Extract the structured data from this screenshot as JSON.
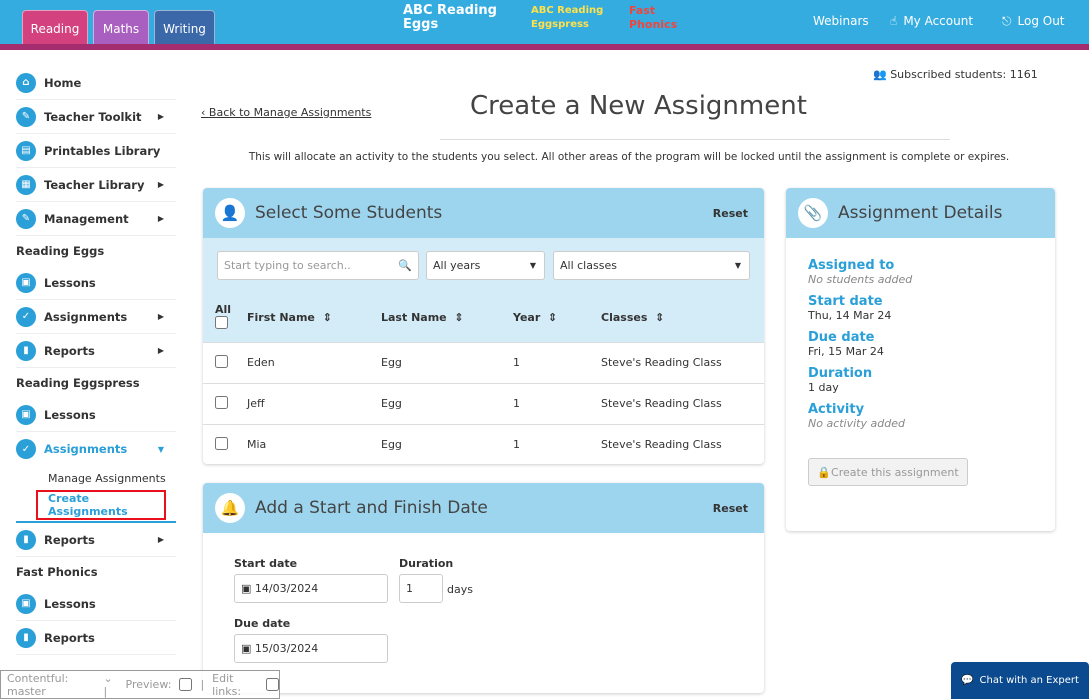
{
  "header": {
    "tabs": [
      "Reading",
      "Maths",
      "Writing"
    ],
    "logos": [
      "ABC Reading Eggs",
      "ABC Reading Eggspress",
      "Fast Phonics"
    ],
    "nav": [
      {
        "icon": "webinars",
        "label": "Webinars"
      },
      {
        "icon": "hand-icon",
        "label": "My Account"
      },
      {
        "icon": "logout-icon",
        "label": "Log Out"
      }
    ]
  },
  "colors": {
    "topbar": "#35ace0",
    "band": "#a32d6e",
    "reading": "#d4417f",
    "maths": "#a95fc0",
    "writing": "#3a68a8",
    "accent": "#2a9fd8"
  },
  "sidebar": {
    "items": [
      {
        "label": "Home"
      },
      {
        "label": "Teacher Toolkit"
      },
      {
        "label": "Printables Library"
      },
      {
        "label": "Teacher Library"
      },
      {
        "label": "Management"
      }
    ],
    "sections": [
      {
        "title": "Reading Eggs",
        "items": [
          "Lessons",
          "Assignments",
          "Reports"
        ]
      },
      {
        "title": "Reading Eggspress",
        "items": [
          "Lessons",
          "Assignments"
        ],
        "subitems": [
          "Manage Assignments",
          "Create Assignments"
        ],
        "after": "Reports"
      },
      {
        "title": "Fast Phonics",
        "items": [
          "Lessons",
          "Reports"
        ]
      }
    ]
  },
  "page": {
    "subscribed": "Subscribed students:  1161",
    "back": "Back to Manage Assignments",
    "title": "Create a New Assignment",
    "intro": "This will allocate an activity to the students you select. All other areas of the program will be locked until the assignment is complete or expires."
  },
  "students": {
    "title": "Select Some Students",
    "reset": "Reset",
    "search_placeholder": "Start typing to search..",
    "years": "All years",
    "classes": "All classes",
    "columns": [
      "All",
      "First Name",
      "Last Name",
      "Year",
      "Classes"
    ],
    "rows": [
      [
        "Eden",
        "Egg",
        "1",
        "Steve's Reading Class"
      ],
      [
        "Jeff",
        "Egg",
        "1",
        "Steve's Reading Class"
      ],
      [
        "Mia",
        "Egg",
        "1",
        "Steve's Reading Class"
      ]
    ]
  },
  "dates": {
    "title": "Add a Start and Finish Date",
    "reset": "Reset",
    "start_label": "Start date",
    "start": "14/03/2024",
    "duration_label": "Duration",
    "duration": "1",
    "days": "days",
    "due_label": "Due date",
    "due": "15/03/2024"
  },
  "details": {
    "title": "Assignment Details",
    "assigned_label": "Assigned to",
    "assigned": "No students added",
    "start_label": "Start date",
    "start": "Thu, 14 Mar 24",
    "due_label": "Due date",
    "due": "Fri, 15 Mar 24",
    "duration_label": "Duration",
    "duration": "1 day",
    "activity_label": "Activity",
    "activity": "No activity added",
    "button": "Create this assignment"
  },
  "footer": {
    "contentful": "Contentful:  master",
    "preview": "Preview:",
    "edit": "Edit links:",
    "chat": "Chat with an Expert"
  }
}
